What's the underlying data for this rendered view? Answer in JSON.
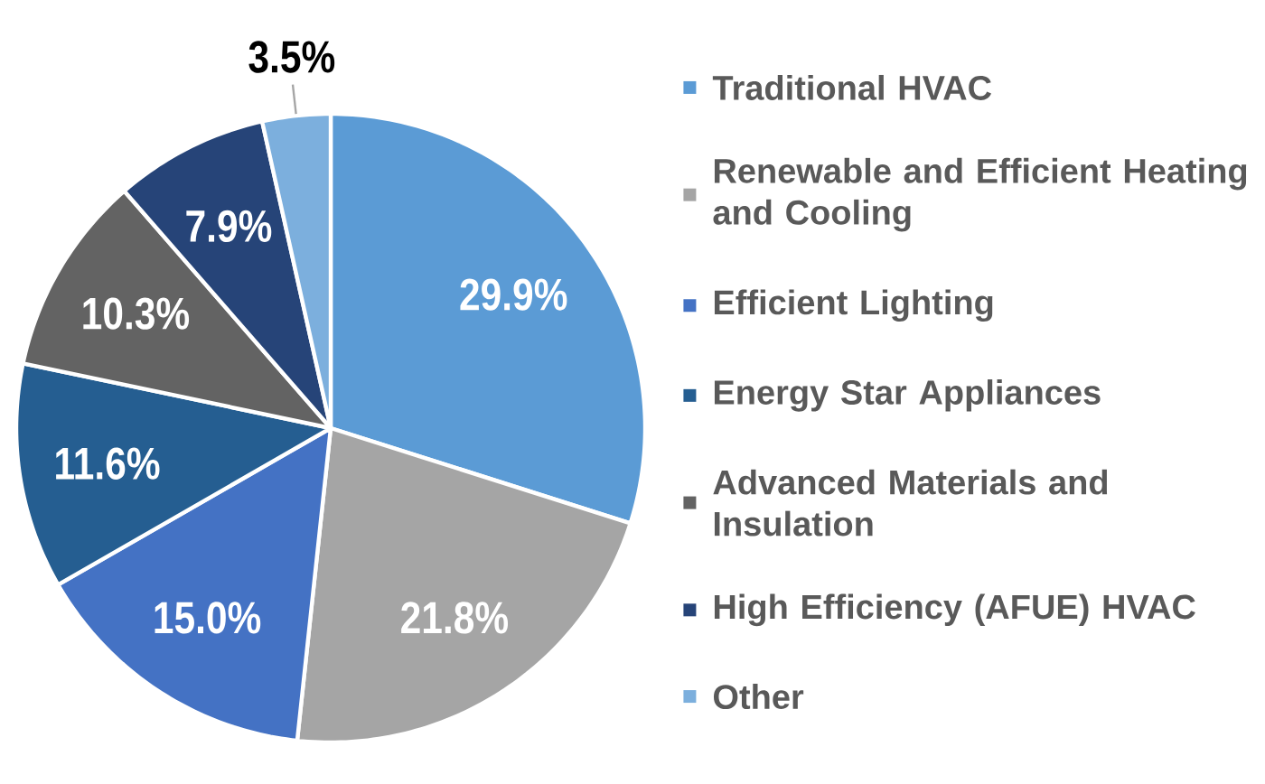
{
  "chart_data": {
    "type": "pie",
    "categories": [
      "Traditional HVAC",
      "Renewable and Efficient Heating and Cooling",
      "Efficient Lighting",
      "Energy Star Appliances",
      "Advanced Materials and Insulation",
      "High Efficiency (AFUE) HVAC",
      "Other"
    ],
    "values": [
      29.9,
      21.8,
      15.0,
      11.6,
      10.3,
      7.9,
      3.5
    ],
    "colors": [
      "#5b9bd5",
      "#a5a5a5",
      "#4472c4",
      "#255e91",
      "#636363",
      "#264478",
      "#7cafdd"
    ],
    "value_labels": [
      "29.9%",
      "21.8%",
      "15.0%",
      "11.6%",
      "10.3%",
      "7.9%",
      "3.5%"
    ],
    "legend": "right"
  }
}
